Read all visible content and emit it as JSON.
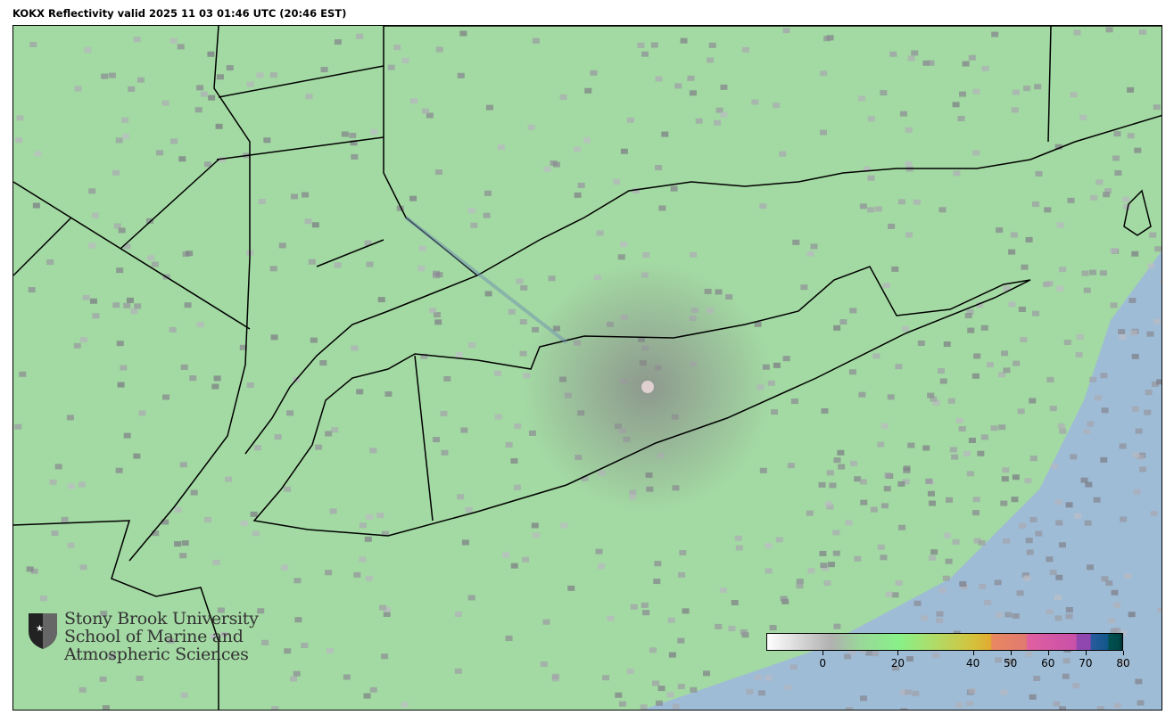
{
  "title": "KOKX Reflectivity valid 2025 11 03 01:46 UTC (20:46 EST)",
  "map": {
    "radar_site": "KOKX",
    "product": "Reflectivity",
    "region": "Long Island / New York metro / Connecticut",
    "colors": {
      "land_echo": "#a3d9a3",
      "ocean": "#9fbcd6",
      "border": "#000000"
    }
  },
  "logo": {
    "line1": "Stony Brook University",
    "line2": "School of Marine and",
    "line3": "Atmospheric Sciences"
  },
  "colorbar": {
    "range": [
      -15,
      80
    ],
    "ticks": [
      "0",
      "20",
      "40",
      "50",
      "60",
      "70",
      "80"
    ],
    "tick_values": [
      0,
      20,
      40,
      50,
      60,
      70,
      80
    ]
  }
}
